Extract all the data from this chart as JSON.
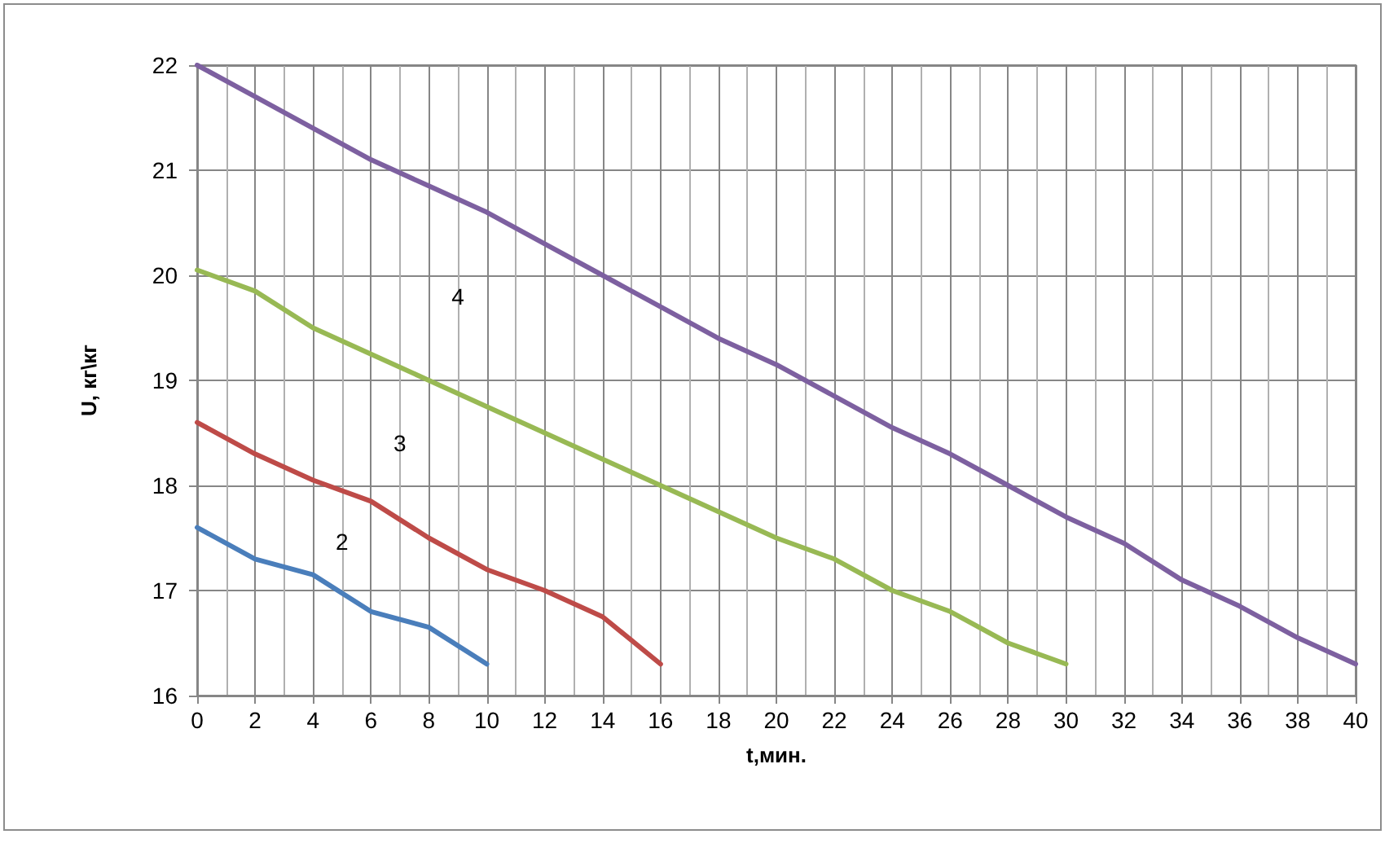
{
  "chart_data": {
    "type": "line",
    "xlabel": "t,мин.",
    "ylabel": "U, кг\\кг",
    "xlim": [
      0,
      40
    ],
    "xticks": [
      0,
      2,
      4,
      6,
      8,
      10,
      12,
      14,
      16,
      18,
      20,
      22,
      24,
      26,
      28,
      30,
      32,
      34,
      36,
      38,
      40
    ],
    "ylim": [
      16,
      22
    ],
    "yticks": [
      16,
      17,
      18,
      19,
      20,
      21,
      22
    ],
    "grid": true,
    "marker": "none",
    "line_style": "solid",
    "series": [
      {
        "color": "#4a7ebb",
        "x": [
          0,
          2,
          4,
          6,
          8,
          10
        ],
        "values": [
          17.6,
          17.3,
          17.15,
          16.8,
          16.65,
          16.3
        ]
      },
      {
        "color": "#be4b48",
        "x": [
          0,
          2,
          4,
          6,
          8,
          10,
          12,
          14,
          16
        ],
        "values": [
          18.6,
          18.3,
          18.05,
          17.85,
          17.5,
          17.2,
          17.0,
          16.75,
          16.3
        ]
      },
      {
        "color": "#98b954",
        "x": [
          0,
          2,
          4,
          6,
          8,
          10,
          12,
          14,
          16,
          18,
          20,
          22,
          24,
          26,
          28,
          30
        ],
        "values": [
          20.05,
          19.85,
          19.5,
          19.25,
          19.0,
          18.75,
          18.5,
          18.25,
          18.0,
          17.75,
          17.5,
          17.3,
          17.0,
          16.8,
          16.5,
          16.3
        ]
      },
      {
        "color": "#7d60a0",
        "x": [
          0,
          2,
          4,
          6,
          8,
          10,
          12,
          14,
          16,
          18,
          20,
          22,
          24,
          26,
          28,
          30,
          32,
          34,
          36,
          38,
          40
        ],
        "values": [
          22.0,
          21.7,
          21.4,
          21.1,
          20.85,
          20.6,
          20.3,
          20.0,
          19.7,
          19.4,
          19.15,
          18.85,
          18.55,
          18.3,
          18.0,
          17.7,
          17.45,
          17.1,
          16.85,
          16.55,
          16.3
        ]
      }
    ],
    "annotations": [
      "2",
      "3",
      "4"
    ]
  }
}
